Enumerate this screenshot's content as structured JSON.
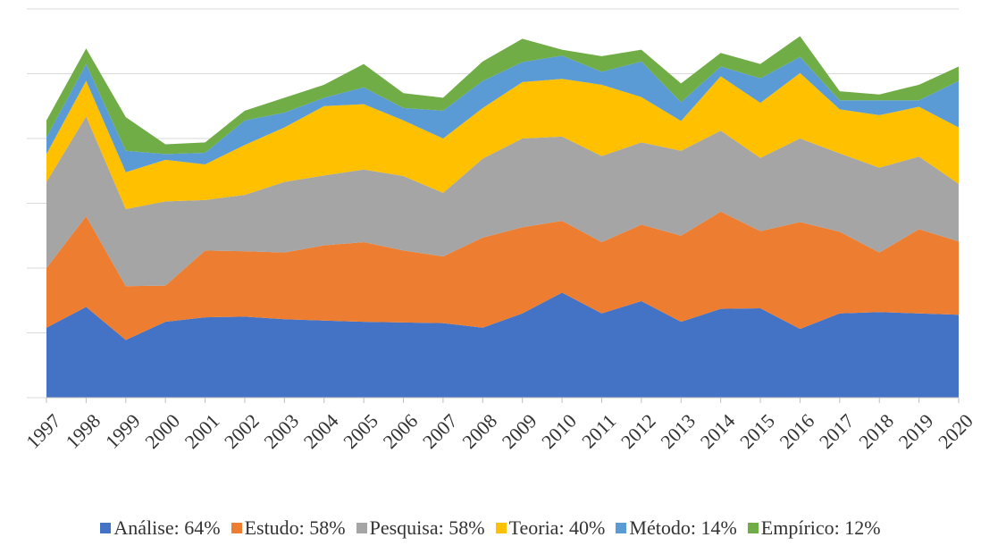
{
  "chart_data": {
    "type": "stacked_area",
    "categories": [
      "1997",
      "1998",
      "1999",
      "2000",
      "2001",
      "2002",
      "2003",
      "2004",
      "2005",
      "2006",
      "2007",
      "2008",
      "2009",
      "2010",
      "2011",
      "2012",
      "2013",
      "2014",
      "2015",
      "2016",
      "2017",
      "2018",
      "2019",
      "2020"
    ],
    "series": [
      {
        "name": "Análise: 64%",
        "color": "#4472c4",
        "values": [
          10.8,
          14.0,
          8.9,
          11.7,
          12.4,
          12.5,
          12.1,
          11.9,
          11.7,
          11.6,
          11.5,
          10.8,
          13.0,
          16.2,
          13.0,
          14.9,
          11.7,
          13.7,
          13.8,
          10.6,
          13.0,
          13.2,
          13.0,
          12.8
        ]
      },
      {
        "name": "Estudo: 58%",
        "color": "#ed7d31",
        "values": [
          9.2,
          14.0,
          8.3,
          5.6,
          10.3,
          10.1,
          10.3,
          11.6,
          12.3,
          11.1,
          10.3,
          13.9,
          13.3,
          11.1,
          11.0,
          11.8,
          13.3,
          15.0,
          11.9,
          16.5,
          12.6,
          9.2,
          13.0,
          11.3
        ]
      },
      {
        "name": "Pesquisa: 58%",
        "color": "#a5a5a5",
        "values": [
          13.3,
          15.4,
          11.9,
          13.0,
          7.8,
          8.7,
          10.9,
          10.8,
          11.2,
          11.5,
          9.8,
          12.2,
          13.7,
          13.0,
          13.3,
          12.7,
          13.1,
          12.5,
          11.3,
          12.9,
          12.1,
          13.1,
          11.2,
          8.9
        ]
      },
      {
        "name": "Teoria: 40%",
        "color": "#ffc000",
        "values": [
          4.3,
          5.5,
          5.7,
          6.4,
          5.5,
          7.7,
          8.4,
          10.7,
          10.1,
          8.6,
          8.4,
          7.8,
          8.7,
          8.9,
          11.0,
          7.0,
          4.6,
          8.4,
          8.5,
          10.1,
          6.8,
          8.1,
          7.7,
          8.7
        ]
      },
      {
        "name": "Método: 14%",
        "color": "#5b9bd5",
        "values": [
          2.6,
          2.6,
          3.3,
          0.9,
          1.8,
          3.8,
          2.3,
          1.3,
          2.6,
          1.9,
          4.3,
          4.2,
          3.1,
          3.6,
          2.0,
          5.5,
          2.9,
          1.5,
          3.8,
          2.5,
          1.4,
          2.3,
          1.0,
          7.2
        ]
      },
      {
        "name": "Empírico: 12%",
        "color": "#70ad47",
        "values": [
          2.6,
          2.4,
          5.2,
          1.5,
          1.6,
          1.5,
          2.3,
          2.0,
          3.6,
          2.3,
          2.0,
          3.0,
          3.6,
          0.9,
          2.4,
          1.8,
          2.9,
          2.1,
          2.2,
          3.2,
          1.4,
          0.9,
          2.4,
          2.2
        ]
      }
    ],
    "ylim": [
      0,
      60
    ],
    "yticks": [
      0,
      10,
      20,
      30,
      40,
      50,
      60
    ],
    "grid": true
  }
}
